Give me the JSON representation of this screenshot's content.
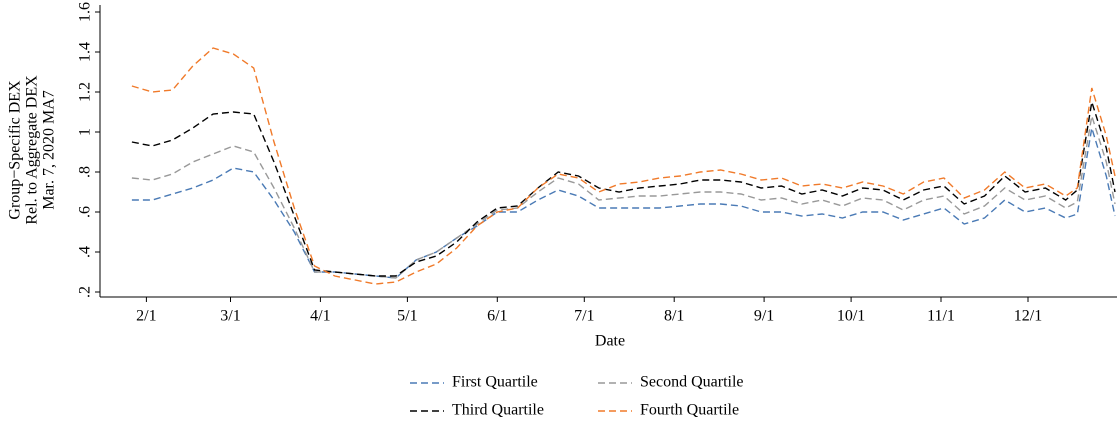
{
  "chart_data": {
    "type": "line",
    "x_label": "Date",
    "y_label": [
      "Group−Specific DEX",
      "Rel. to Aggregate DEX",
      "Mar. 7, 2020 MA7"
    ],
    "x": [
      "1/27",
      "2/3",
      "2/10",
      "2/17",
      "2/24",
      "3/2",
      "3/9",
      "3/16",
      "3/23",
      "3/30",
      "4/6",
      "4/13",
      "4/20",
      "4/27",
      "5/4",
      "5/11",
      "5/18",
      "5/25",
      "6/1",
      "6/8",
      "6/15",
      "6/22",
      "6/29",
      "7/6",
      "7/13",
      "7/20",
      "7/27",
      "8/3",
      "8/10",
      "8/17",
      "8/24",
      "8/31",
      "9/7",
      "9/14",
      "9/21",
      "9/28",
      "10/5",
      "10/12",
      "10/19",
      "10/26",
      "11/2",
      "11/9",
      "11/16",
      "11/23",
      "11/30",
      "12/7",
      "12/14",
      "12/18",
      "12/23",
      "12/28",
      "12/31"
    ],
    "series": [
      {
        "name": "First Quartile",
        "color": "#4a7ab5",
        "values": [
          0.66,
          0.66,
          0.69,
          0.72,
          0.76,
          0.82,
          0.8,
          0.66,
          0.5,
          0.3,
          0.3,
          0.29,
          0.28,
          0.27,
          0.36,
          0.4,
          0.47,
          0.53,
          0.6,
          0.6,
          0.66,
          0.71,
          0.68,
          0.62,
          0.62,
          0.62,
          0.62,
          0.63,
          0.64,
          0.64,
          0.63,
          0.6,
          0.6,
          0.58,
          0.59,
          0.57,
          0.6,
          0.6,
          0.56,
          0.59,
          0.62,
          0.54,
          0.57,
          0.66,
          0.6,
          0.62,
          0.57,
          0.59,
          1.02,
          0.78,
          0.58
        ]
      },
      {
        "name": "Second Quartile",
        "color": "#999999",
        "values": [
          0.77,
          0.76,
          0.79,
          0.85,
          0.89,
          0.93,
          0.9,
          0.72,
          0.52,
          0.3,
          0.3,
          0.29,
          0.28,
          0.27,
          0.36,
          0.4,
          0.47,
          0.54,
          0.61,
          0.62,
          0.7,
          0.77,
          0.74,
          0.66,
          0.67,
          0.68,
          0.68,
          0.69,
          0.7,
          0.7,
          0.69,
          0.66,
          0.67,
          0.64,
          0.66,
          0.63,
          0.67,
          0.66,
          0.61,
          0.66,
          0.68,
          0.59,
          0.63,
          0.72,
          0.66,
          0.68,
          0.62,
          0.65,
          1.08,
          0.85,
          0.64
        ]
      },
      {
        "name": "Third Quartile",
        "color": "#000000",
        "values": [
          0.95,
          0.93,
          0.96,
          1.02,
          1.09,
          1.1,
          1.09,
          0.85,
          0.58,
          0.31,
          0.3,
          0.29,
          0.28,
          0.28,
          0.35,
          0.38,
          0.45,
          0.55,
          0.62,
          0.63,
          0.72,
          0.8,
          0.78,
          0.72,
          0.7,
          0.72,
          0.73,
          0.74,
          0.76,
          0.76,
          0.75,
          0.72,
          0.73,
          0.69,
          0.71,
          0.68,
          0.72,
          0.71,
          0.66,
          0.71,
          0.73,
          0.64,
          0.68,
          0.78,
          0.7,
          0.72,
          0.66,
          0.71,
          1.15,
          0.92,
          0.7
        ]
      },
      {
        "name": "Fourth Quartile",
        "color": "#f07a2a",
        "values": [
          1.23,
          1.2,
          1.21,
          1.33,
          1.42,
          1.39,
          1.32,
          0.95,
          0.62,
          0.33,
          0.28,
          0.26,
          0.24,
          0.25,
          0.3,
          0.34,
          0.42,
          0.53,
          0.6,
          0.62,
          0.72,
          0.79,
          0.77,
          0.7,
          0.74,
          0.75,
          0.77,
          0.78,
          0.8,
          0.81,
          0.79,
          0.76,
          0.77,
          0.73,
          0.74,
          0.72,
          0.75,
          0.73,
          0.69,
          0.75,
          0.77,
          0.67,
          0.71,
          0.8,
          0.72,
          0.74,
          0.68,
          0.72,
          1.22,
          0.98,
          0.78
        ]
      }
    ],
    "xlim": [
      "1/16",
      "12/31"
    ],
    "xticks": [
      "2/1",
      "3/1",
      "4/1",
      "5/1",
      "6/1",
      "7/1",
      "8/1",
      "9/1",
      "10/1",
      "11/1",
      "12/1"
    ],
    "ylim": [
      0.175,
      1.635
    ],
    "yticks": [
      {
        "value": 0.2,
        "label": ".2"
      },
      {
        "value": 0.4,
        "label": ".4"
      },
      {
        "value": 0.6,
        "label": ".6"
      },
      {
        "value": 0.8,
        "label": ".8"
      },
      1,
      1.2,
      1.4,
      1.6
    ],
    "grid": false,
    "legend": "bottom",
    "dashed": true
  }
}
